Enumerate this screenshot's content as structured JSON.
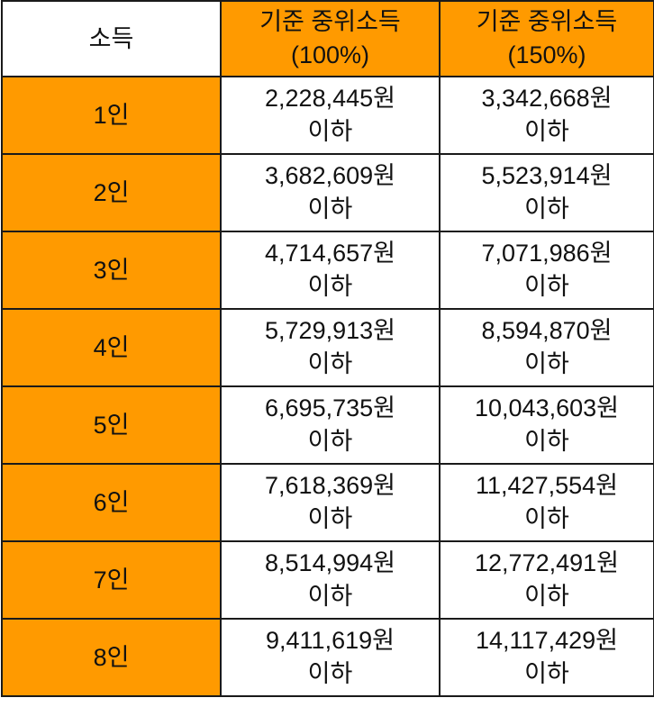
{
  "table": {
    "header": {
      "corner": "소득",
      "columns": [
        {
          "line1": "기준 중위소득",
          "line2": "(100%)"
        },
        {
          "line1": "기준 중위소득",
          "line2": "(150%)"
        }
      ]
    },
    "rows": [
      {
        "label": "1인",
        "c100": "2,228,445원",
        "c150": "3,342,668원",
        "suffix": "이하"
      },
      {
        "label": "2인",
        "c100": "3,682,609원",
        "c150": "5,523,914원",
        "suffix": "이하"
      },
      {
        "label": "3인",
        "c100": "4,714,657원",
        "c150": "7,071,986원",
        "suffix": "이하"
      },
      {
        "label": "4인",
        "c100": "5,729,913원",
        "c150": "8,594,870원",
        "suffix": "이하"
      },
      {
        "label": "5인",
        "c100": "6,695,735원",
        "c150": "10,043,603원",
        "suffix": "이하"
      },
      {
        "label": "6인",
        "c100": "7,618,369원",
        "c150": "11,427,554원",
        "suffix": "이하"
      },
      {
        "label": "7인",
        "c100": "8,514,994원",
        "c150": "12,772,491원",
        "suffix": "이하"
      },
      {
        "label": "8인",
        "c100": "9,411,619원",
        "c150": "14,117,429원",
        "suffix": "이하"
      }
    ]
  },
  "colors": {
    "accent": "#ff9a00",
    "border": "#1a1a1a",
    "background": "#ffffff"
  }
}
